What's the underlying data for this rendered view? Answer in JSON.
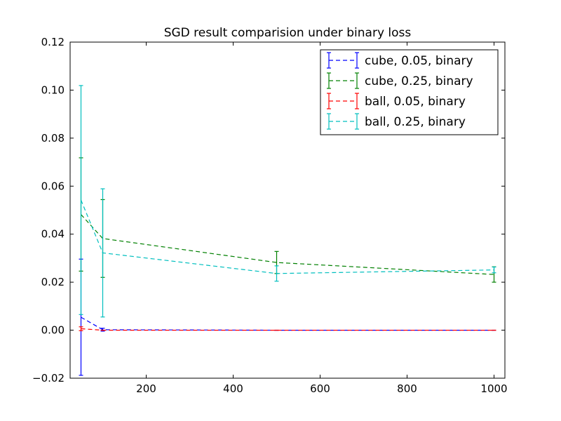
{
  "chart_data": {
    "type": "line",
    "title": "SGD result comparision under binary loss",
    "xlabel": "",
    "ylabel": "",
    "xlim": [
      25,
      1025
    ],
    "ylim": [
      -0.02,
      0.12
    ],
    "x_ticks": [
      200,
      400,
      600,
      800,
      1000
    ],
    "x_tick_labels": [
      "200",
      "400",
      "600",
      "800",
      "1000"
    ],
    "y_ticks": [
      -0.02,
      0.0,
      0.02,
      0.04,
      0.06,
      0.08,
      0.1,
      0.12
    ],
    "y_tick_labels": [
      "−0.02",
      "0.00",
      "0.02",
      "0.04",
      "0.06",
      "0.08",
      "0.10",
      "0.12"
    ],
    "grid": false,
    "legend_position": "top-right",
    "line_style": "dashed",
    "error_bars": true,
    "series": [
      {
        "name": "cube, 0.05, binary",
        "color": "#0000ff",
        "x": [
          50,
          100,
          500,
          1000
        ],
        "y": [
          0.0054,
          0.0002,
          0.0,
          0.0
        ],
        "err": [
          0.0242,
          0.0006,
          0.0,
          0.0
        ]
      },
      {
        "name": "cube, 0.25, binary",
        "color": "#008000",
        "x": [
          50,
          100,
          500,
          1000
        ],
        "y": [
          0.0482,
          0.0382,
          0.0282,
          0.0232
        ],
        "err": [
          0.0236,
          0.0162,
          0.0046,
          0.0032
        ]
      },
      {
        "name": "ball, 0.05, binary",
        "color": "#ff0000",
        "x": [
          50,
          100,
          500,
          1000
        ],
        "y": [
          0.0006,
          0.0,
          0.0,
          0.0
        ],
        "err": [
          0.0008,
          0.0,
          0.0,
          0.0
        ]
      },
      {
        "name": "ball, 0.25, binary",
        "color": "#00bfbf",
        "x": [
          50,
          100,
          500,
          1000
        ],
        "y": [
          0.0542,
          0.0322,
          0.0236,
          0.0251
        ],
        "err": [
          0.0477,
          0.0267,
          0.0032,
          0.0012
        ]
      }
    ]
  }
}
